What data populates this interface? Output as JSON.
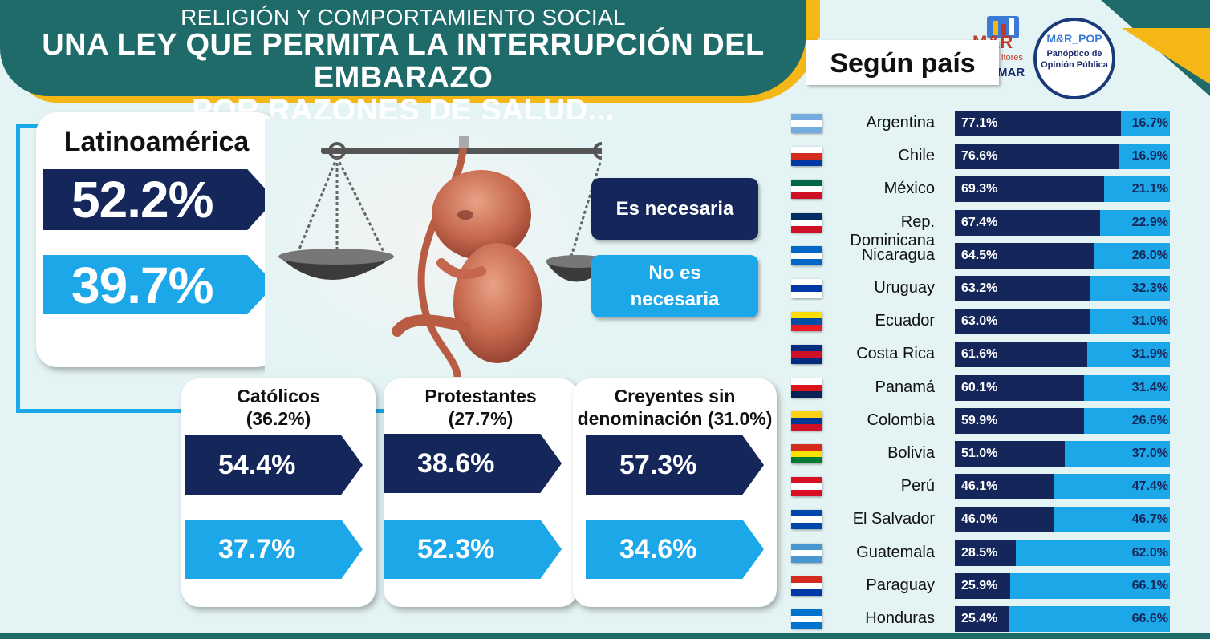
{
  "header": {
    "kicker": "RELIGIÓN Y COMPORTAMIENTO SOCIAL",
    "title_line1": "UNA LEY QUE PERMITA LA INTERRUPCIÓN DEL EMBARAZO",
    "title_line2": "POR RAZONES DE SALUD..."
  },
  "logos": {
    "mr_text": "M&R",
    "mr_sub": "ltores",
    "mr_mar": "MAR",
    "pop_text": "M&R_POP",
    "pop_sub1": "Panóptico de",
    "pop_sub2": "Opinión Pública"
  },
  "side_title": "Según país",
  "legend": {
    "yes": "Es necesaria",
    "no_line1": "No es",
    "no_line2": "necesaria"
  },
  "colors": {
    "yes": "#15275a",
    "no": "#1ba7e8",
    "header": "#1e6b6a",
    "accent": "#f5b716"
  },
  "latinoamerica": {
    "label": "Latinoamérica",
    "yes": "52.2%",
    "no": "39.7%"
  },
  "religions": [
    {
      "line1": "Católicos",
      "line2": "(36.2%)",
      "yes": "54.4%",
      "no": "37.7%"
    },
    {
      "line1": "Protestantes",
      "line2": "(27.7%)",
      "yes": "38.6%",
      "no": "52.3%"
    },
    {
      "line1": "Creyentes sin",
      "line2": "denominación (31.0%)",
      "yes": "57.3%",
      "no": "34.6%"
    }
  ],
  "chart_data": {
    "type": "bar",
    "orientation": "horizontal",
    "stacked": true,
    "categories": [
      "Argentina",
      "Chile",
      "México",
      "Rep. Dominicana",
      "Nicaragua",
      "Uruguay",
      "Ecuador",
      "Costa Rica",
      "Panamá",
      "Colombia",
      "Bolivia",
      "Perú",
      "El Salvador",
      "Guatemala",
      "Paraguay",
      "Honduras"
    ],
    "series": [
      {
        "name": "Es necesaria",
        "values": [
          77.1,
          76.6,
          69.3,
          67.4,
          64.5,
          63.2,
          63.0,
          61.6,
          60.1,
          59.9,
          51.0,
          46.1,
          46.0,
          28.5,
          25.9,
          25.4
        ]
      },
      {
        "name": "No es necesaria",
        "values": [
          16.7,
          16.9,
          21.1,
          22.9,
          26.0,
          32.3,
          31.0,
          31.9,
          31.4,
          26.6,
          37.0,
          47.4,
          46.7,
          62.0,
          66.1,
          66.6
        ]
      }
    ],
    "labels_yes": [
      "77.1%",
      "76.6%",
      "69.3%",
      "67.4%",
      "64.5%",
      "63.2%",
      "63.0%",
      "61.6%",
      "60.1%",
      "59.9%",
      "51.0%",
      "46.1%",
      "46.0%",
      "28.5%",
      "25.9%",
      "25.4%"
    ],
    "labels_no": [
      "16.7%",
      "16.9%",
      "21.1%",
      "22.9%",
      "26.0%",
      "32.3%",
      "31.0%",
      "31.9%",
      "31.4%",
      "26.6%",
      "37.0%",
      "47.4%",
      "46.7%",
      "62.0%",
      "66.1%",
      "66.6%"
    ],
    "flags": [
      [
        "#74acdf",
        "#ffffff",
        "#74acdf"
      ],
      [
        "#ffffff",
        "#d52b1e",
        "#0039a6"
      ],
      [
        "#006847",
        "#ffffff",
        "#ce1126"
      ],
      [
        "#002d62",
        "#ffffff",
        "#ce1126"
      ],
      [
        "#0067c6",
        "#ffffff",
        "#0067c6"
      ],
      [
        "#ffffff",
        "#0038a8",
        "#ffffff"
      ],
      [
        "#ffdd00",
        "#034ea2",
        "#ed1c24"
      ],
      [
        "#002b7f",
        "#ce1126",
        "#002b7f"
      ],
      [
        "#ffffff",
        "#da121a",
        "#072357"
      ],
      [
        "#fcd116",
        "#003893",
        "#ce1126"
      ],
      [
        "#d52b1e",
        "#f9e300",
        "#007934"
      ],
      [
        "#d91023",
        "#ffffff",
        "#d91023"
      ],
      [
        "#0047ab",
        "#ffffff",
        "#0047ab"
      ],
      [
        "#4997d0",
        "#ffffff",
        "#4997d0"
      ],
      [
        "#d52b1e",
        "#ffffff",
        "#0038a8"
      ],
      [
        "#0073cf",
        "#ffffff",
        "#0073cf"
      ]
    ],
    "xlim": [
      0,
      100
    ],
    "legend_position": "center-left"
  }
}
